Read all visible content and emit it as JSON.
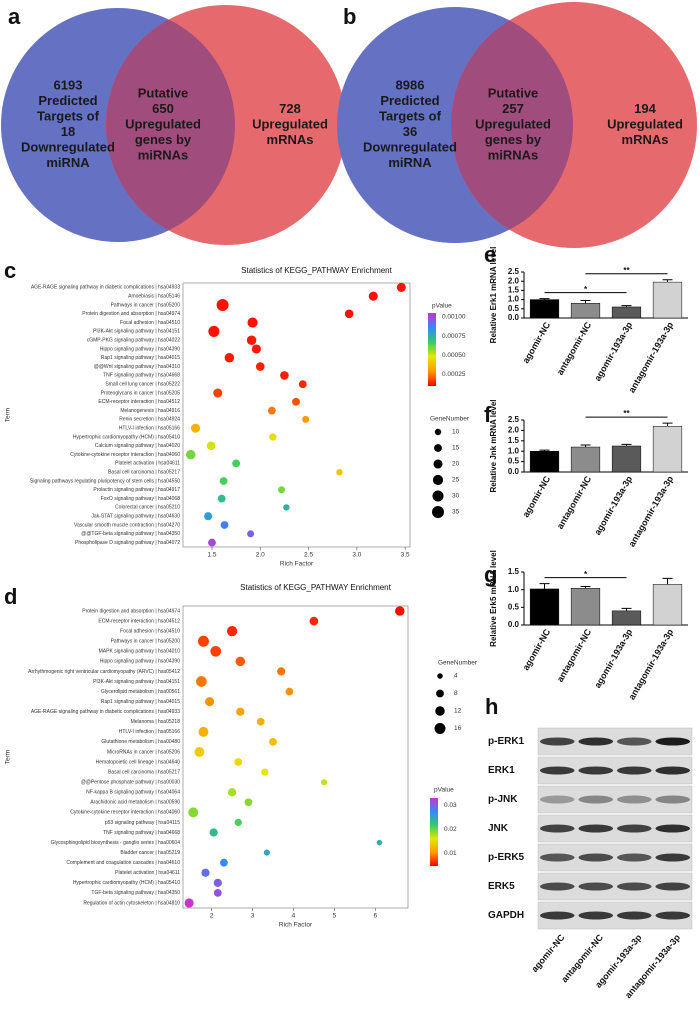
{
  "chart_data": [
    {
      "type": "venn",
      "panel": "a",
      "sets": [
        {
          "lines": [
            "6193",
            "Predicted",
            "Targets of",
            "18",
            "Downregulated",
            "miRNA"
          ],
          "color": "#6571c3"
        },
        {
          "lines": [
            "728",
            "Upregulated",
            "mRNAs"
          ],
          "color": "#e66a6d"
        }
      ],
      "overlap_lines": [
        "Putative",
        "650",
        "Upregulated",
        "genes by",
        "miRNAs"
      ],
      "overlap_color": "#a04d7d"
    },
    {
      "type": "venn",
      "panel": "b",
      "sets": [
        {
          "lines": [
            "8986",
            "Predicted",
            "Targets of",
            "36",
            "Downregulated",
            "miRNA"
          ],
          "color": "#6571c3"
        },
        {
          "lines": [
            "194",
            "Upregulated",
            "mRNAs"
          ],
          "color": "#e66a6d"
        }
      ],
      "overlap_lines": [
        "Putative",
        "257",
        "Upregulated",
        "genes by",
        "miRNAs"
      ],
      "overlap_color": "#a04d7d"
    },
    {
      "type": "scatter",
      "panel": "c",
      "title": "Statistics of KEGG_PATHWAY Enrichment",
      "xlabel": "Rich Factor",
      "ylabel": "Term",
      "categories": [
        "AGE-RAGE signaling pathway in diabetic complications | hsa04933",
        "Amoebiasis | hsa05146",
        "Pathways in cancer | hsa05200",
        "Protein digestion and absorption | hsa04974",
        "Focal adhesion | hsa04510",
        "PI3K-Akt signaling pathway | hsa04151",
        "cGMP-PKG signaling pathway | hsa04022",
        "Hippo signaling pathway | hsa04390",
        "Rap1 signaling pathway | hsa04015",
        "@@Wnt signaling pathway | hsa04310",
        "TNF signaling pathway | hsa04668",
        "Small cell lung cancer | hsa05222",
        "Proteoglycans in cancer | hsa05205",
        "ECM-receptor interaction | hsa04512",
        "Melanogenesis | hsa04916",
        "Renin secretion | hsa04924",
        "HTLV-I infection | hsa05166",
        "Hypertrophic cardiomyopathy (HCM) | hsa05410",
        "Calcium signaling pathway | hsa04020",
        "Cytokine-cytokine receptor interaction | hsa04060",
        "Platelet activation | hsa04611",
        "Basal cell carcinoma | hsa05217",
        "Signaling pathways regulating pluripotency of stem cells | hsa04550",
        "Prolactin signaling pathway | hsa04917",
        "FoxO signaling pathway | hsa04068",
        "Colorectal cancer | hsa05210",
        "Jak-STAT signaling pathway | hsa04630",
        "Vascular smooth muscle contraction | hsa04270",
        "@@TGF-beta signaling pathway | hsa04350",
        "Phospholipase D signaling pathway | hsa04072"
      ],
      "values": [
        3.46,
        3.17,
        1.61,
        2.92,
        1.92,
        1.52,
        1.91,
        1.96,
        1.68,
        2.0,
        2.25,
        2.44,
        1.56,
        2.37,
        2.12,
        2.47,
        1.33,
        2.13,
        1.49,
        1.28,
        1.75,
        2.82,
        1.62,
        2.22,
        1.6,
        2.27,
        1.46,
        1.63,
        1.9,
        1.5
      ],
      "sizes": [
        20,
        20,
        35,
        18,
        25,
        30,
        22,
        20,
        22,
        18,
        18,
        15,
        20,
        15,
        15,
        12,
        20,
        13,
        18,
        22,
        15,
        10,
        15,
        12,
        15,
        10,
        16,
        15,
        12,
        15
      ],
      "color_values": [
        0.00012,
        0.00012,
        0.00012,
        0.00012,
        0.00012,
        0.00012,
        0.00013,
        0.00013,
        0.00013,
        0.00014,
        0.00014,
        0.00015,
        0.00018,
        0.0002,
        0.00025,
        0.0003,
        0.00035,
        0.00045,
        0.0005,
        0.0006,
        0.00065,
        0.0004,
        0.00065,
        0.0006,
        0.00072,
        0.00075,
        0.0008,
        0.00088,
        0.00095,
        0.001
      ],
      "xlim": [
        1.2,
        3.55
      ],
      "xticks": [
        1.5,
        {
          "value": 2,
          "label": "2.0"
        },
        2.5,
        {
          "value": 3,
          "label": "3.0"
        },
        3.5
      ],
      "color_legend": {
        "title": "pValue",
        "lim": [
          0.0001,
          0.00105
        ],
        "colors": [
          "#ff0000",
          "#ff9900",
          "#e6e600",
          "#33cc66",
          "#3388ff",
          "#cc33cc"
        ],
        "ticks": [
          0.00025,
          {
            "value": 0.0005,
            "label": "0.00050"
          },
          0.00075,
          {
            "value": 0.001,
            "label": "0.00100"
          }
        ]
      },
      "size_legend": {
        "title": "GeneNumber",
        "ticks": [
          10,
          15,
          20,
          25,
          30,
          35
        ]
      }
    },
    {
      "type": "scatter",
      "panel": "d",
      "title": "Statistics of KEGG_PATHWAY Enrichment",
      "xlabel": "Rich Factor",
      "ylabel": "Term",
      "categories": [
        "Protein digestion and absorption | hsa04974",
        "ECM-receptor interaction | hsa04512",
        "Focal adhesion | hsa04510",
        "Pathways in cancer | hsa05200",
        "MAPK signaling pathway | hsa04010",
        "Hippo signaling pathway | hsa04390",
        "Arrhythmogenic right ventricular cardiomyopathy (ARVC) | hsa05412",
        "PI3K-Akt signaling pathway | hsa04151",
        "Glycerolipid metabolism | hsa00561",
        "Rap1 signaling pathway | hsa04015",
        "AGE-RAGE signaling pathway in diabetic complications | hsa04933",
        "Melanoma | hsa05218",
        "HTLV-I infection | hsa05166",
        "Glutathione metabolism | hsa00480",
        "MicroRNAs in cancer | hsa05206",
        "Hematopoietic cell lineage | hsa04640",
        "Basal cell carcinoma | hsa05217",
        "@@Pentose phosphate pathway | hsa00030",
        "NF-kappa B signaling pathway | hsa04064",
        "Arachidonic acid metabolism | hsa00590",
        "Cytokine-cytokine receptor interaction | hsa04060",
        "p53 signaling pathway | hsa04115",
        "TNF signaling pathway | hsa04668",
        "Glycosphingolipid biosynthesis - ganglio series | hsa00604",
        "Bladder cancer | hsa05219",
        "Complement and coagulation cascades | hsa04610",
        "Platelet activation | hsa04611",
        "Hypertrophic cardiomyopathy (HCM) | hsa05410",
        "TGF-beta signaling pathway | hsa04350",
        "Regulation of actin cytoskeleton | hsa04810"
      ],
      "values": [
        6.6,
        4.5,
        2.5,
        1.8,
        2.1,
        2.7,
        3.7,
        1.75,
        3.9,
        1.95,
        2.7,
        3.2,
        1.8,
        3.5,
        1.7,
        2.65,
        3.3,
        4.75,
        2.5,
        2.9,
        1.55,
        2.65,
        2.05,
        6.1,
        3.35,
        2.3,
        1.85,
        2.15,
        2.15,
        1.45
      ],
      "sizes": [
        12,
        10,
        14,
        16,
        15,
        12,
        9,
        15,
        8,
        11,
        9,
        8,
        13,
        8,
        13,
        8,
        7,
        5,
        9,
        8,
        13,
        7,
        9,
        4,
        5,
        8,
        9,
        9,
        8,
        11
      ],
      "color_values": [
        0.005,
        0.006,
        0.006,
        0.007,
        0.007,
        0.008,
        0.009,
        0.009,
        0.01,
        0.01,
        0.011,
        0.012,
        0.012,
        0.013,
        0.014,
        0.015,
        0.016,
        0.017,
        0.018,
        0.019,
        0.019,
        0.021,
        0.023,
        0.024,
        0.025,
        0.027,
        0.029,
        0.03,
        0.031,
        0.033
      ],
      "xlim": [
        1.3,
        6.8
      ],
      "xticks": [
        2,
        3,
        4,
        5,
        6
      ],
      "color_legend": {
        "title": "pValue",
        "lim": [
          0.0046,
          0.033
        ],
        "colors": [
          "#ff0000",
          "#ff9900",
          "#e6e600",
          "#33cc66",
          "#3388ff",
          "#cc33cc"
        ],
        "ticks": [
          0.01,
          0.02,
          0.03
        ]
      },
      "size_legend": {
        "title": "GeneNumber",
        "ticks": [
          4,
          8,
          12,
          16
        ]
      }
    },
    {
      "type": "bar",
      "panel": "e",
      "ylabel": "Relative Erk1 mRNA level",
      "categories": [
        "agomir-NC",
        "antagomir-NC",
        "agomir-193a-3p",
        "antagomir-193a-3p"
      ],
      "values": [
        1.0,
        0.8,
        0.6,
        1.95
      ],
      "errors": [
        0.05,
        0.15,
        0.07,
        0.13
      ],
      "colors": [
        "#000000",
        "#8c8c8c",
        "#5a5a5a",
        "#d2d2d2"
      ],
      "ylim": [
        0,
        2.5
      ],
      "yticks": [
        {
          "value": 0,
          "label": "0.0"
        },
        0.5,
        {
          "value": 1,
          "label": "1.0"
        },
        1.5,
        {
          "value": 2,
          "label": "2.0"
        },
        2.5
      ],
      "annotations": [
        {
          "text": "*",
          "between": [
            "agomir-NC",
            "agomir-193a-3p"
          ]
        },
        {
          "text": "**",
          "between": [
            "antagomir-NC",
            "antagomir-193a-3p"
          ]
        }
      ]
    },
    {
      "type": "bar",
      "panel": "f",
      "ylabel": "Relative Jnk mRNA level",
      "categories": [
        "agomir-NC",
        "antagomir-NC",
        "agomir-193a-3p",
        "antagomir-193a-3p"
      ],
      "values": [
        1.0,
        1.2,
        1.25,
        2.2
      ],
      "errors": [
        0.05,
        0.1,
        0.08,
        0.15
      ],
      "colors": [
        "#000000",
        "#8c8c8c",
        "#5a5a5a",
        "#d2d2d2"
      ],
      "ylim": [
        0,
        2.5
      ],
      "yticks": [
        {
          "value": 0,
          "label": "0.0"
        },
        0.5,
        {
          "value": 1,
          "label": "1.0"
        },
        1.5,
        {
          "value": 2,
          "label": "2.0"
        },
        2.5
      ],
      "annotations": [
        {
          "text": "**",
          "between": [
            "antagomir-NC",
            "antagomir-193a-3p"
          ]
        }
      ]
    },
    {
      "type": "bar",
      "panel": "g",
      "ylabel": "Relative Erk5 mRNA level",
      "categories": [
        "agomir-NC",
        "antagomir-NC",
        "agomir-193a-3p",
        "antagomir-193a-3p"
      ],
      "values": [
        1.02,
        1.04,
        0.4,
        1.15
      ],
      "errors": [
        0.15,
        0.05,
        0.07,
        0.17
      ],
      "colors": [
        "#000000",
        "#8c8c8c",
        "#5a5a5a",
        "#d2d2d2"
      ],
      "ylim": [
        0,
        1.5
      ],
      "yticks": [
        {
          "value": 0,
          "label": "0.0"
        },
        0.5,
        {
          "value": 1,
          "label": "1.0"
        },
        1.5
      ],
      "annotations": [
        {
          "text": "*",
          "between": [
            "agomir-NC",
            "agomir-193a-3p"
          ]
        }
      ]
    },
    {
      "type": "blot",
      "panel": "h",
      "rows": [
        "p-ERK1",
        "ERK1",
        "p-JNK",
        "JNK",
        "p-ERK5",
        "ERK5",
        "GAPDH"
      ],
      "categories": [
        "agomir-NC",
        "antagomir-NC",
        "agomir-193a-3p",
        "antagomir-193a-3p"
      ]
    }
  ]
}
